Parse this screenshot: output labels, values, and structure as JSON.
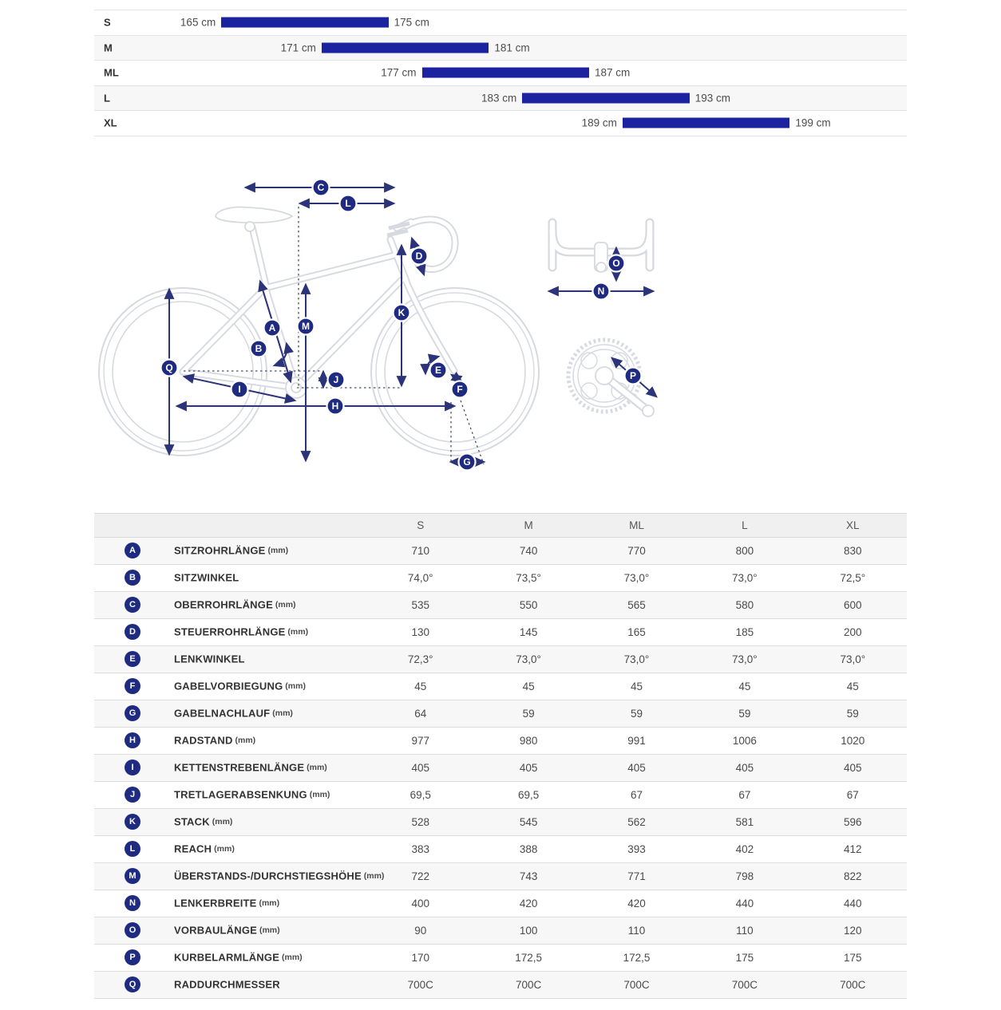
{
  "colors": {
    "bar_blue": "#1b23a0",
    "badge_navy": "#1e2b80",
    "arrow_navy": "#2b3478",
    "outline_gray": "#d6d9e0",
    "row_alt": "#f7f7f7",
    "header_bg": "#f0f0f0"
  },
  "chart_data": {
    "type": "bar",
    "size_range_chart": {
      "type": "bar",
      "orientation": "horizontal-range",
      "unit": "cm",
      "x_domain": [
        157.4,
        206
      ],
      "rows": [
        {
          "size": "S",
          "min": 165,
          "max": 175,
          "min_label": "165 cm",
          "max_label": "175 cm"
        },
        {
          "size": "M",
          "min": 171,
          "max": 181,
          "min_label": "171 cm",
          "max_label": "181 cm"
        },
        {
          "size": "ML",
          "min": 177,
          "max": 187,
          "min_label": "177 cm",
          "max_label": "187 cm"
        },
        {
          "size": "L",
          "min": 183,
          "max": 193,
          "min_label": "183 cm",
          "max_label": "193 cm"
        },
        {
          "size": "XL",
          "min": 189,
          "max": 199,
          "min_label": "189 cm",
          "max_label": "199 cm"
        }
      ]
    },
    "geometry_table": {
      "columns": [
        "S",
        "M",
        "ML",
        "L",
        "XL"
      ],
      "rows": [
        {
          "key": "A",
          "label": "SITZROHRLÄNGE",
          "unit": "(mm)",
          "values": [
            "710",
            "740",
            "770",
            "800",
            "830"
          ]
        },
        {
          "key": "B",
          "label": "SITZWINKEL",
          "unit": "",
          "values": [
            "74,0°",
            "73,5°",
            "73,0°",
            "73,0°",
            "72,5°"
          ]
        },
        {
          "key": "C",
          "label": "OBERROHRLÄNGE",
          "unit": "(mm)",
          "values": [
            "535",
            "550",
            "565",
            "580",
            "600"
          ]
        },
        {
          "key": "D",
          "label": "STEUERROHRLÄNGE",
          "unit": "(mm)",
          "values": [
            "130",
            "145",
            "165",
            "185",
            "200"
          ]
        },
        {
          "key": "E",
          "label": "LENKWINKEL",
          "unit": "",
          "values": [
            "72,3°",
            "73,0°",
            "73,0°",
            "73,0°",
            "73,0°"
          ]
        },
        {
          "key": "F",
          "label": "GABELVORBIEGUNG",
          "unit": "(mm)",
          "values": [
            "45",
            "45",
            "45",
            "45",
            "45"
          ]
        },
        {
          "key": "G",
          "label": "GABELNACHLAUF",
          "unit": "(mm)",
          "values": [
            "64",
            "59",
            "59",
            "59",
            "59"
          ]
        },
        {
          "key": "H",
          "label": "RADSTAND",
          "unit": "(mm)",
          "values": [
            "977",
            "980",
            "991",
            "1006",
            "1020"
          ]
        },
        {
          "key": "I",
          "label": "KETTENSTREBENLÄNGE",
          "unit": "(mm)",
          "values": [
            "405",
            "405",
            "405",
            "405",
            "405"
          ]
        },
        {
          "key": "J",
          "label": "TRETLAGERABSENKUNG",
          "unit": "(mm)",
          "values": [
            "69,5",
            "69,5",
            "67",
            "67",
            "67"
          ]
        },
        {
          "key": "K",
          "label": "STACK",
          "unit": "(mm)",
          "values": [
            "528",
            "545",
            "562",
            "581",
            "596"
          ]
        },
        {
          "key": "L",
          "label": "REACH",
          "unit": "(mm)",
          "values": [
            "383",
            "388",
            "393",
            "402",
            "412"
          ]
        },
        {
          "key": "M",
          "label": "ÜBERSTANDS-/DURCHSTIEGSHÖHE",
          "unit": "(mm)",
          "values": [
            "722",
            "743",
            "771",
            "798",
            "822"
          ]
        },
        {
          "key": "N",
          "label": "LENKERBREITE",
          "unit": "(mm)",
          "values": [
            "400",
            "420",
            "420",
            "440",
            "440"
          ]
        },
        {
          "key": "O",
          "label": "VORBAULÄNGE",
          "unit": "(mm)",
          "values": [
            "90",
            "100",
            "110",
            "110",
            "120"
          ]
        },
        {
          "key": "P",
          "label": "KURBELARMLÄNGE",
          "unit": "(mm)",
          "values": [
            "170",
            "172,5",
            "172,5",
            "175",
            "175"
          ]
        },
        {
          "key": "Q",
          "label": "RADDURCHMESSER",
          "unit": "",
          "values": [
            "700C",
            "700C",
            "700C",
            "700C",
            "700C"
          ]
        }
      ]
    },
    "diagram_letters": {
      "A": "A",
      "B": "B",
      "C": "C",
      "D": "D",
      "E": "E",
      "F": "F",
      "G": "G",
      "H": "H",
      "I": "I",
      "J": "J",
      "K": "K",
      "L": "L",
      "M": "M",
      "N": "N",
      "O": "O",
      "P": "P",
      "Q": "Q"
    }
  }
}
